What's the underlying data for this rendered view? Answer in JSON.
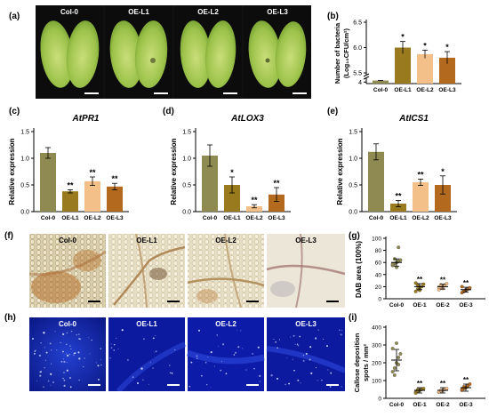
{
  "panel_labels": {
    "a": "(a)",
    "b": "(b)",
    "c": "(c)",
    "d": "(d)",
    "e": "(e)",
    "f": "(f)",
    "g": "(g)",
    "h": "(h)",
    "i": "(i)"
  },
  "leaf_headers": [
    "Col-0",
    "OE-L1",
    "OE-L2",
    "OE-L3"
  ],
  "stain_headers": [
    "Col-0",
    "OE-L1",
    "OE-L2",
    "OE-L3"
  ],
  "fluor_headers": [
    "Col-0",
    "OE-L1",
    "OE-L2",
    "OE-L3"
  ],
  "colors": {
    "col0": "#8f8a52",
    "oe1": "#9a7a1f",
    "oe2": "#f3c08a",
    "oe3": "#b36a1f",
    "leaf": "#9cc24a",
    "stain_bg": "#d6c9a8",
    "fluor_bg": "#0a1a9a"
  },
  "chart_data": [
    {
      "id": "b",
      "type": "bar",
      "categories": [
        "Col-0",
        "OE-L1",
        "OE-L2",
        "OE-L3"
      ],
      "values": [
        4.2,
        6.0,
        5.87,
        5.8
      ],
      "errors": [
        0.02,
        0.12,
        0.08,
        0.12
      ],
      "sig": [
        "",
        "*",
        "*",
        "*"
      ],
      "ylabel_line1": "Number of bacteria",
      "ylabel_line2": "(Log₁₀CFU/cm²)",
      "yticks": [
        "4",
        "5.5",
        "6.0",
        "6.5"
      ],
      "axis_break": true
    },
    {
      "id": "c",
      "type": "bar",
      "title": "AtPR1",
      "categories": [
        "Col-0",
        "OE-L1",
        "OE-L2",
        "OE-L3"
      ],
      "values": [
        1.1,
        0.38,
        0.57,
        0.47
      ],
      "errors": [
        0.1,
        0.03,
        0.08,
        0.06
      ],
      "sig": [
        "",
        "**",
        "**",
        "**"
      ],
      "ylabel": "Relative expression",
      "yticks": [
        "0.0",
        "0.5",
        "1.0",
        "1.5"
      ],
      "ylim": [
        0,
        1.5
      ]
    },
    {
      "id": "d",
      "type": "bar",
      "title": "AtLOX3",
      "categories": [
        "Col-0",
        "OE-L1",
        "OE-L2",
        "OE-L3"
      ],
      "values": [
        1.05,
        0.5,
        0.1,
        0.32
      ],
      "errors": [
        0.2,
        0.15,
        0.03,
        0.13
      ],
      "sig": [
        "",
        "*",
        "**",
        "**"
      ],
      "ylabel": "Relative expression",
      "yticks": [
        "0.0",
        "0.5",
        "1.0",
        "1.5"
      ],
      "ylim": [
        0,
        1.5
      ]
    },
    {
      "id": "e",
      "type": "bar",
      "title": "AtICS1",
      "categories": [
        "Col-0",
        "OE-L1",
        "OE-L2",
        "OE-L3"
      ],
      "values": [
        1.12,
        0.15,
        0.55,
        0.5
      ],
      "errors": [
        0.15,
        0.06,
        0.06,
        0.17
      ],
      "sig": [
        "",
        "**",
        "**",
        "*"
      ],
      "ylabel": "Relative expression",
      "yticks": [
        "0.0",
        "0.5",
        "1.0",
        "1.5"
      ],
      "ylim": [
        0,
        1.5
      ]
    },
    {
      "id": "g",
      "type": "scatter",
      "categories": [
        "Col-0",
        "OE-1",
        "OE-2",
        "OE-3"
      ],
      "means": [
        60,
        20,
        20,
        15
      ],
      "errors": [
        6,
        5,
        4,
        4
      ],
      "sig": [
        "",
        "**",
        "**",
        "**"
      ],
      "points": [
        [
          55,
          58,
          60,
          62,
          64,
          57,
          66,
          52,
          85
        ],
        [
          12,
          16,
          18,
          20,
          24,
          26,
          22,
          14
        ],
        [
          15,
          18,
          20,
          22,
          25,
          19,
          23,
          17
        ],
        [
          10,
          12,
          14,
          16,
          18,
          20,
          13,
          15
        ]
      ],
      "ylabel": "DAB area (100%)",
      "yticks": [
        "0",
        "20",
        "40",
        "60",
        "80",
        "100"
      ],
      "ylim": [
        0,
        100
      ]
    },
    {
      "id": "i",
      "type": "scatter",
      "categories": [
        "Col-0",
        "OE-1",
        "OE-2",
        "OE-3"
      ],
      "means": [
        215,
        45,
        45,
        60
      ],
      "errors": [
        60,
        15,
        15,
        20
      ],
      "sig": [
        "",
        "**",
        "**",
        "**"
      ],
      "points": [
        [
          150,
          170,
          200,
          230,
          250,
          280,
          130,
          310,
          190
        ],
        [
          35,
          40,
          45,
          50,
          55,
          30,
          48
        ],
        [
          35,
          40,
          45,
          50,
          55,
          38,
          44
        ],
        [
          45,
          55,
          60,
          70,
          80,
          50,
          65
        ]
      ],
      "ylabel_line1": "Callose deposition",
      "ylabel_line2": "spots / mm²",
      "yticks": [
        "0",
        "100",
        "200",
        "300",
        "400"
      ],
      "ylim": [
        0,
        400
      ]
    }
  ]
}
